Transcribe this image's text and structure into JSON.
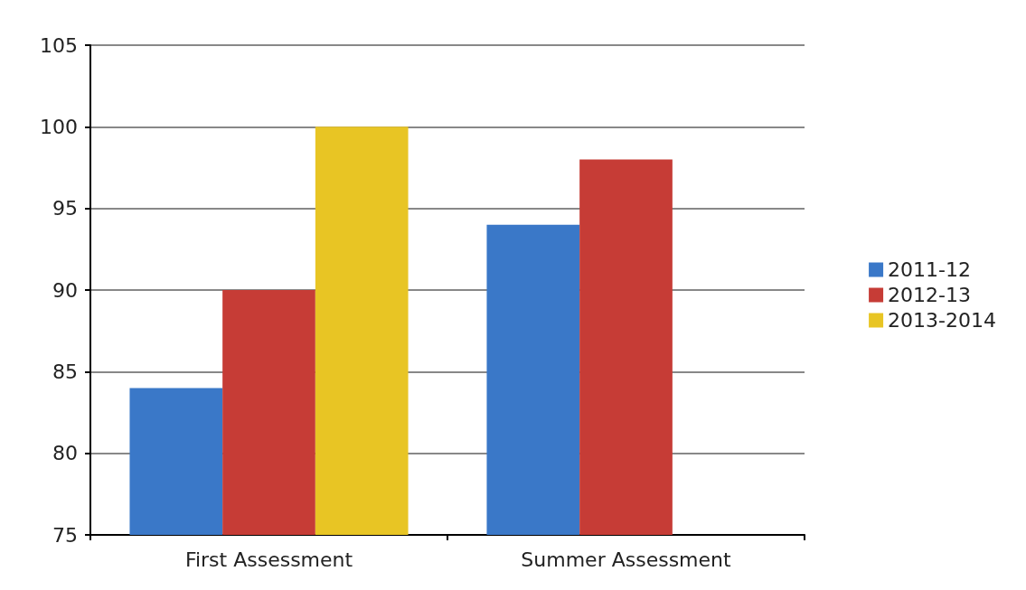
{
  "chart_data": {
    "type": "bar",
    "categories": [
      "First Assessment",
      "Summer Assessment"
    ],
    "series": [
      {
        "name": "2011-12",
        "color": "#3a78c8",
        "values": [
          84,
          94
        ]
      },
      {
        "name": "2012-13",
        "color": "#c63c36",
        "values": [
          90,
          98
        ]
      },
      {
        "name": "2013-2014",
        "color": "#e8c524",
        "values": [
          100,
          null
        ]
      }
    ],
    "ylim": [
      75,
      105
    ],
    "yticks": [
      75,
      80,
      85,
      90,
      95,
      100,
      105
    ],
    "grid": "y",
    "legend": "right"
  }
}
